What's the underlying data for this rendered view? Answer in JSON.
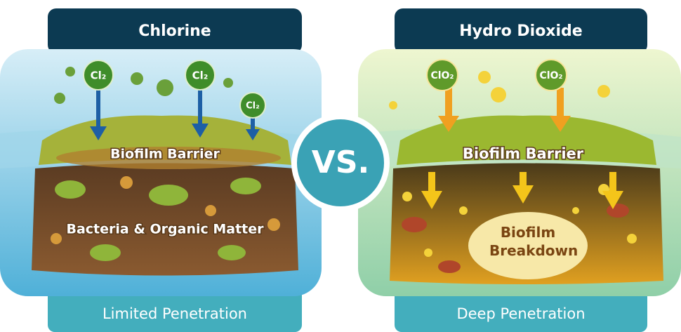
{
  "vs": "VS.",
  "left": {
    "header": "Chlorine",
    "molecules": [
      "Cl₂",
      "Cl₂",
      "Cl₂"
    ],
    "layer_label": "Biofilm Barrier",
    "body_label": "Bacteria & Organic Matter",
    "footer": "Limited Penetration"
  },
  "right": {
    "header": "Hydro Dioxide",
    "molecules": [
      "ClO₂",
      "ClO₂"
    ],
    "layer_label": "Biofilm Barrier",
    "body_label": "Biofilm Breakdown",
    "footer": "Deep Penetration"
  }
}
